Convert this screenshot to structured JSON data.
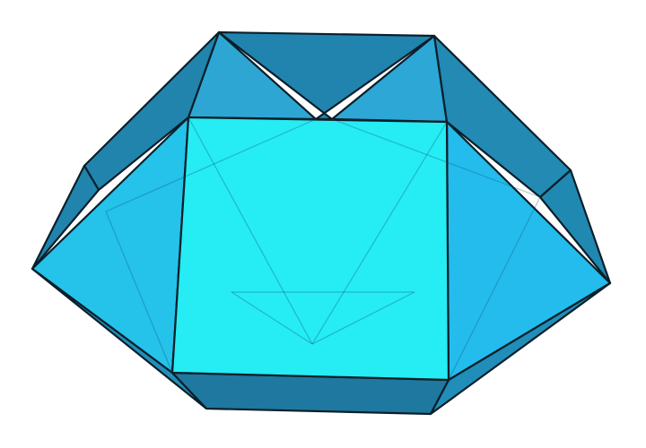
{
  "figure": {
    "subject": "polyhedron",
    "colors": {
      "front_square": "#14eaf2",
      "left_triangle": "#12bde8",
      "right_triangle": "#10b6ea",
      "top_square": "#0d7aa8",
      "top_left_triangle": "#1c9ed0",
      "top_right_triangle": "#1a9fd3",
      "upper_left_square": "#0e79a6",
      "upper_right_square": "#0f80ad",
      "lower_left_square": "#0d79a6",
      "lower_right_square": "#0d7fab",
      "bottom_square": "#0b6d97",
      "bottom_left_triangle": "#0e86b6",
      "bottom_right_triangle": "#0d84b3",
      "edge": "#0b1f2a",
      "background": "#ffffff"
    }
  }
}
